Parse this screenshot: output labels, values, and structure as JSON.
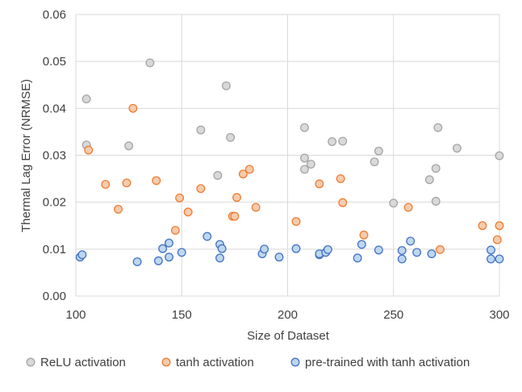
{
  "chart_data": {
    "type": "scatter",
    "title": "",
    "xlabel": "Size of Dataset",
    "ylabel": "Thermal Lag Error (NRMSE)",
    "xlim": [
      100,
      300
    ],
    "ylim": [
      0,
      0.06
    ],
    "xticks": [
      100,
      150,
      200,
      250,
      300
    ],
    "yticks": [
      0,
      0.01,
      0.02,
      0.03,
      0.04,
      0.05,
      0.06
    ],
    "xtick_labels": [
      "100",
      "150",
      "200",
      "250",
      "300"
    ],
    "ytick_labels": [
      "0.00",
      "0.01",
      "0.02",
      "0.03",
      "0.04",
      "0.05",
      "0.06"
    ],
    "grid": true,
    "legend_position": "bottom",
    "series": [
      {
        "name": "ReLU activation",
        "color": "#a5a5a5",
        "fill": "#d9d9d9",
        "points": [
          [
            105,
            0.042
          ],
          [
            105,
            0.0322
          ],
          [
            125,
            0.032
          ],
          [
            135,
            0.0497
          ],
          [
            159,
            0.0354
          ],
          [
            167,
            0.0257
          ],
          [
            171,
            0.0448
          ],
          [
            173,
            0.0338
          ],
          [
            208,
            0.0359
          ],
          [
            208,
            0.0294
          ],
          [
            208,
            0.027
          ],
          [
            211,
            0.0281
          ],
          [
            221,
            0.0329
          ],
          [
            226,
            0.033
          ],
          [
            241,
            0.0286
          ],
          [
            243,
            0.0309
          ],
          [
            250,
            0.0198
          ],
          [
            267,
            0.0248
          ],
          [
            270,
            0.0272
          ],
          [
            270,
            0.0202
          ],
          [
            271,
            0.0359
          ],
          [
            280,
            0.0315
          ],
          [
            300,
            0.0299
          ]
        ]
      },
      {
        "name": "tanh activation",
        "color": "#ed7d31",
        "fill": "#f8cbad",
        "points": [
          [
            106,
            0.0311
          ],
          [
            114,
            0.0238
          ],
          [
            120,
            0.0185
          ],
          [
            124,
            0.0241
          ],
          [
            127,
            0.04
          ],
          [
            138,
            0.0246
          ],
          [
            147,
            0.014
          ],
          [
            149,
            0.0209
          ],
          [
            153,
            0.0179
          ],
          [
            159,
            0.0229
          ],
          [
            174,
            0.017
          ],
          [
            175,
            0.017
          ],
          [
            176,
            0.021
          ],
          [
            179,
            0.026
          ],
          [
            182,
            0.027
          ],
          [
            185,
            0.0189
          ],
          [
            204,
            0.0159
          ],
          [
            215,
            0.0239
          ],
          [
            225,
            0.025
          ],
          [
            226,
            0.0199
          ],
          [
            236,
            0.013
          ],
          [
            257,
            0.0189
          ],
          [
            272,
            0.0099
          ],
          [
            292,
            0.015
          ],
          [
            299,
            0.012
          ],
          [
            300,
            0.015
          ]
        ]
      },
      {
        "name": "pre-trained with tanh activation",
        "color": "#4472c4",
        "fill": "#bdd7ee",
        "points": [
          [
            102,
            0.0083
          ],
          [
            103,
            0.0088
          ],
          [
            129,
            0.0073
          ],
          [
            139,
            0.0075
          ],
          [
            141,
            0.0101
          ],
          [
            144,
            0.0083
          ],
          [
            144,
            0.0113
          ],
          [
            150,
            0.0093
          ],
          [
            162,
            0.0127
          ],
          [
            168,
            0.0081
          ],
          [
            168,
            0.011
          ],
          [
            169,
            0.0101
          ],
          [
            188,
            0.009
          ],
          [
            189,
            0.01
          ],
          [
            196,
            0.0083
          ],
          [
            204,
            0.0101
          ],
          [
            215,
            0.0088
          ],
          [
            215,
            0.009
          ],
          [
            218,
            0.0093
          ],
          [
            219,
            0.0099
          ],
          [
            233,
            0.0081
          ],
          [
            235,
            0.011
          ],
          [
            243,
            0.0098
          ],
          [
            254,
            0.0079
          ],
          [
            254,
            0.0097
          ],
          [
            258,
            0.0117
          ],
          [
            261,
            0.0093
          ],
          [
            268,
            0.009
          ],
          [
            296,
            0.0079
          ],
          [
            296,
            0.0098
          ],
          [
            300,
            0.0079
          ]
        ]
      }
    ]
  }
}
